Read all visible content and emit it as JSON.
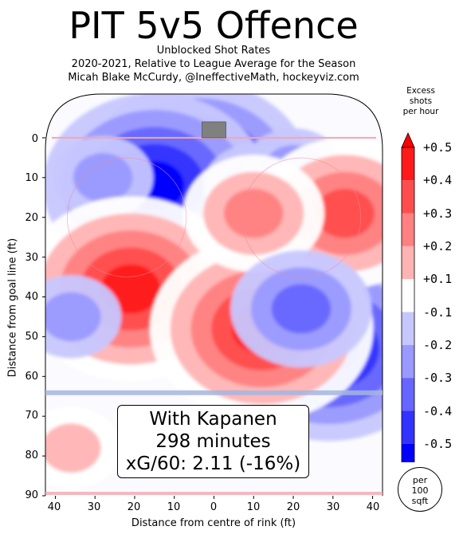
{
  "title": "PIT 5v5 Offence",
  "subtitle_lines": [
    "Unblocked Shot Rates",
    "2020-2021, Relative to League Average for the Season",
    "Micah Blake McCurdy, @IneffectiveMath, hockeyviz.com"
  ],
  "info": {
    "player": "With Kapanen",
    "minutes": "298 minutes",
    "xg": "xG/60: 2.11 (-16%)"
  },
  "unit_label": [
    "per",
    "100",
    "sqft"
  ],
  "colorbar": {
    "title": [
      "Excess",
      "shots",
      "per hour"
    ],
    "ticks": [
      "+0.5",
      "+0.4",
      "+0.3",
      "+0.2",
      "+0.1",
      "-0.1",
      "-0.2",
      "-0.3",
      "-0.4",
      "-0.5"
    ],
    "colors": [
      "#ff1a1a",
      "#ff4d4d",
      "#ff8080",
      "#ffb3b3",
      "#ffffff",
      "#c7c7ff",
      "#9999ff",
      "#6666ff",
      "#3333ff",
      "#0000ff"
    ],
    "levels": [
      0.5,
      0.4,
      0.3,
      0.2,
      0.1,
      -0.1,
      -0.2,
      -0.3,
      -0.4,
      -0.5
    ]
  },
  "chart_data": {
    "type": "heatmap",
    "xlabel": "Distance from centre of rink (ft)",
    "ylabel": "Distance from goal line (ft)",
    "xlim": [
      42.5,
      -42.5
    ],
    "ylim": [
      90,
      -11
    ],
    "xticks": [
      "40",
      "30",
      "20",
      "10",
      "0",
      "10",
      "20",
      "30",
      "40"
    ],
    "yticks": [
      "0",
      "10",
      "20",
      "30",
      "40",
      "50",
      "60",
      "70",
      "80",
      "90"
    ],
    "colormap": "red-white-blue diverging",
    "regions": [
      {
        "x": 4,
        "y": 9,
        "value": -0.5
      },
      {
        "x": 15,
        "y": 12,
        "value": -0.5
      },
      {
        "x": -10,
        "y": 12,
        "value": -0.2
      },
      {
        "x": -28,
        "y": 32,
        "value": -0.5
      },
      {
        "x": -29,
        "y": 53,
        "value": -0.5
      },
      {
        "x": 28,
        "y": 10,
        "value": -0.2
      },
      {
        "x": -20,
        "y": 8,
        "value": -0.2
      },
      {
        "x": 21,
        "y": 38,
        "value": 0.5
      },
      {
        "x": -12,
        "y": 48,
        "value": 0.5
      },
      {
        "x": -33,
        "y": 19,
        "value": 0.4
      },
      {
        "x": -10,
        "y": 19,
        "value": 0.3
      },
      {
        "x": 36,
        "y": 78,
        "value": 0.2
      },
      {
        "x": -22,
        "y": 43,
        "value": -0.3
      },
      {
        "x": 36,
        "y": 45,
        "value": -0.2
      }
    ]
  }
}
